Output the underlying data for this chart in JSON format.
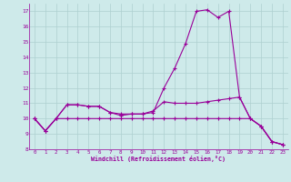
{
  "xlabel": "Windchill (Refroidissement éolien,°C)",
  "background_color": "#ceeaea",
  "grid_color": "#add0d0",
  "line_color": "#990099",
  "xlim": [
    -0.5,
    23.5
  ],
  "ylim": [
    8,
    17.5
  ],
  "yticks": [
    8,
    9,
    10,
    11,
    12,
    13,
    14,
    15,
    16,
    17
  ],
  "xticks": [
    0,
    1,
    2,
    3,
    4,
    5,
    6,
    7,
    8,
    9,
    10,
    11,
    12,
    13,
    14,
    15,
    16,
    17,
    18,
    19,
    20,
    21,
    22,
    23
  ],
  "series": [
    [
      10.0,
      9.2,
      10.0,
      10.9,
      10.9,
      10.8,
      10.8,
      10.4,
      10.2,
      10.3,
      10.3,
      10.4,
      12.0,
      13.3,
      14.9,
      17.0,
      17.1,
      16.6,
      17.0,
      11.4,
      10.0,
      9.5,
      8.5,
      8.3
    ],
    [
      10.0,
      9.2,
      10.0,
      10.9,
      10.9,
      10.8,
      10.8,
      10.4,
      10.3,
      10.3,
      10.3,
      10.5,
      11.1,
      11.0,
      11.0,
      11.0,
      11.1,
      11.2,
      11.3,
      11.4,
      10.0,
      9.5,
      8.5,
      8.3
    ],
    [
      10.0,
      9.2,
      10.0,
      10.0,
      10.0,
      10.0,
      10.0,
      10.0,
      10.0,
      10.0,
      10.0,
      10.0,
      10.0,
      10.0,
      10.0,
      10.0,
      10.0,
      10.0,
      10.0,
      10.0,
      10.0,
      9.5,
      8.5,
      8.3
    ]
  ]
}
